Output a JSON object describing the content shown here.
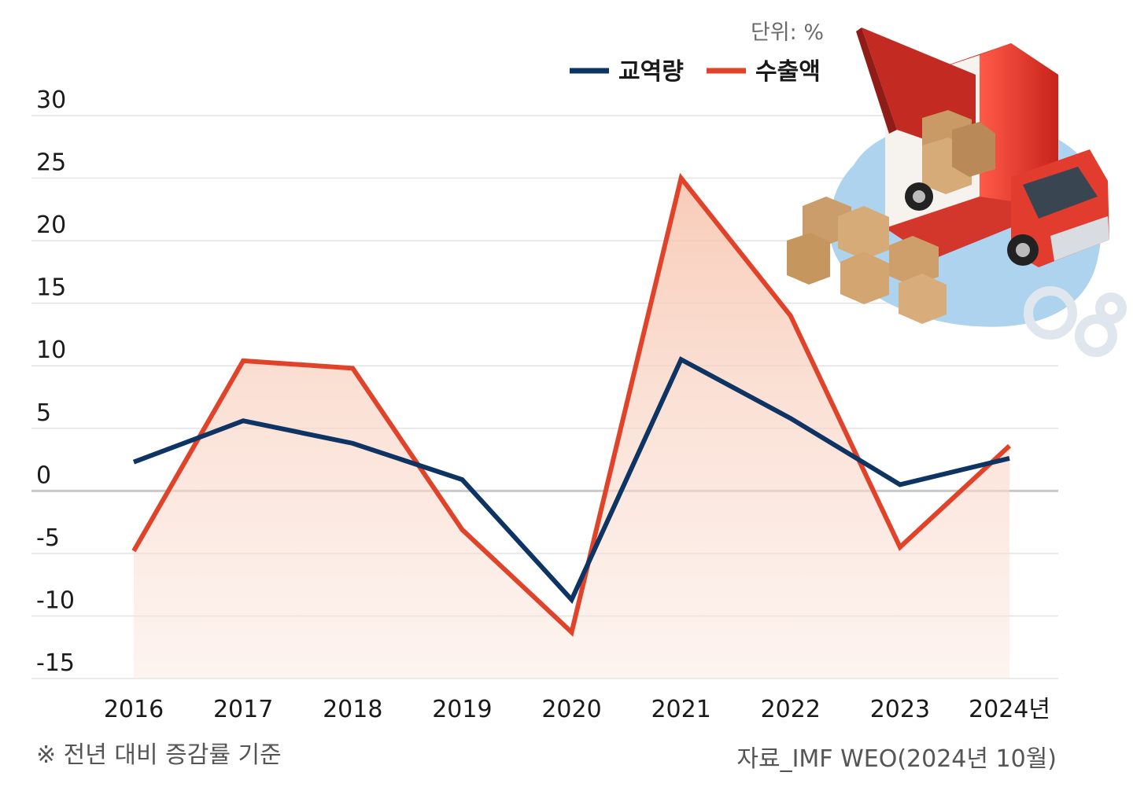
{
  "chart_data": {
    "type": "line",
    "unit_label": "단위: %",
    "categories": [
      "2016",
      "2017",
      "2018",
      "2019",
      "2020",
      "2021",
      "2022",
      "2023",
      "2024년"
    ],
    "ylim": [
      -15,
      30
    ],
    "yticks": [
      30,
      25,
      20,
      15,
      10,
      5,
      0,
      -5,
      -10,
      -15
    ],
    "grid": true,
    "legend_position": "top-right",
    "series": [
      {
        "name": "교역량",
        "color": "#0d3463",
        "values": [
          2.3,
          5.6,
          3.8,
          0.9,
          -8.7,
          10.5,
          5.8,
          0.5,
          2.6
        ]
      },
      {
        "name": "수출액",
        "color": "#e0432a",
        "values": [
          -4.8,
          10.4,
          9.8,
          -3.1,
          -11.3,
          25.0,
          14.0,
          -4.5,
          3.6
        ]
      }
    ],
    "area_fill_series": "수출액",
    "area_fill_color": "#f6c7b4"
  },
  "footnote": "※ 전년 대비 증감률 기준",
  "source": "자료_IMF WEO(2024년 10월)"
}
